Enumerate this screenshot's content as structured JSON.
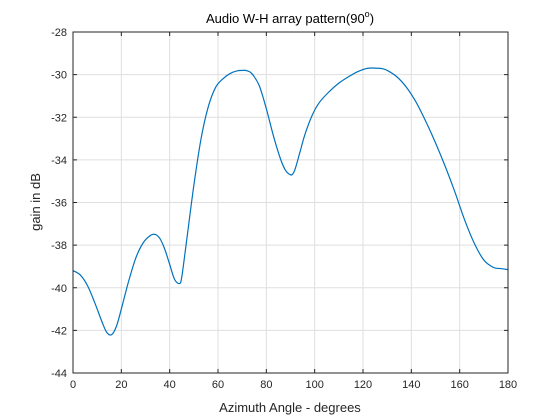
{
  "chart_data": {
    "type": "line",
    "title_main": "Audio W-H array pattern(90",
    "title_sup": "o",
    "title_end": ")",
    "xlabel": "Azimuth Angle - degrees",
    "ylabel": "gain in dB",
    "xlim": [
      0,
      180
    ],
    "ylim": [
      -44,
      -28
    ],
    "xticks": [
      0,
      20,
      40,
      60,
      80,
      100,
      120,
      140,
      160,
      180
    ],
    "yticks": [
      -44,
      -42,
      -40,
      -38,
      -36,
      -34,
      -32,
      -30,
      -28
    ],
    "grid": true,
    "series": [
      {
        "color": "#0072bd",
        "x": [
          0,
          3,
          6,
          9,
          12,
          14,
          16,
          18,
          20,
          23,
          26,
          29,
          32,
          34,
          36,
          38,
          40,
          42,
          44,
          45,
          47,
          50,
          53,
          56,
          59,
          62,
          65,
          68,
          71,
          72,
          74,
          77,
          80,
          83,
          86,
          88,
          90,
          91,
          92,
          94,
          96,
          99,
          102,
          106,
          110,
          114,
          118,
          122,
          126,
          128,
          130,
          134,
          138,
          142,
          146,
          150,
          154,
          158,
          162,
          166,
          170,
          174,
          177,
          180
        ],
        "y": [
          -39.2,
          -39.4,
          -39.9,
          -40.7,
          -41.6,
          -42.1,
          -42.2,
          -41.8,
          -41.0,
          -39.7,
          -38.6,
          -37.9,
          -37.55,
          -37.5,
          -37.7,
          -38.2,
          -38.9,
          -39.6,
          -39.8,
          -39.5,
          -37.8,
          -35.2,
          -33.0,
          -31.5,
          -30.6,
          -30.2,
          -29.95,
          -29.82,
          -29.8,
          -29.82,
          -29.95,
          -30.5,
          -31.6,
          -32.9,
          -34.0,
          -34.5,
          -34.7,
          -34.65,
          -34.4,
          -33.6,
          -32.8,
          -31.9,
          -31.3,
          -30.8,
          -30.4,
          -30.1,
          -29.85,
          -29.7,
          -29.7,
          -29.72,
          -29.8,
          -30.1,
          -30.6,
          -31.3,
          -32.2,
          -33.2,
          -34.3,
          -35.5,
          -36.8,
          -37.9,
          -38.7,
          -39.05,
          -39.1,
          -39.15
        ]
      }
    ]
  }
}
